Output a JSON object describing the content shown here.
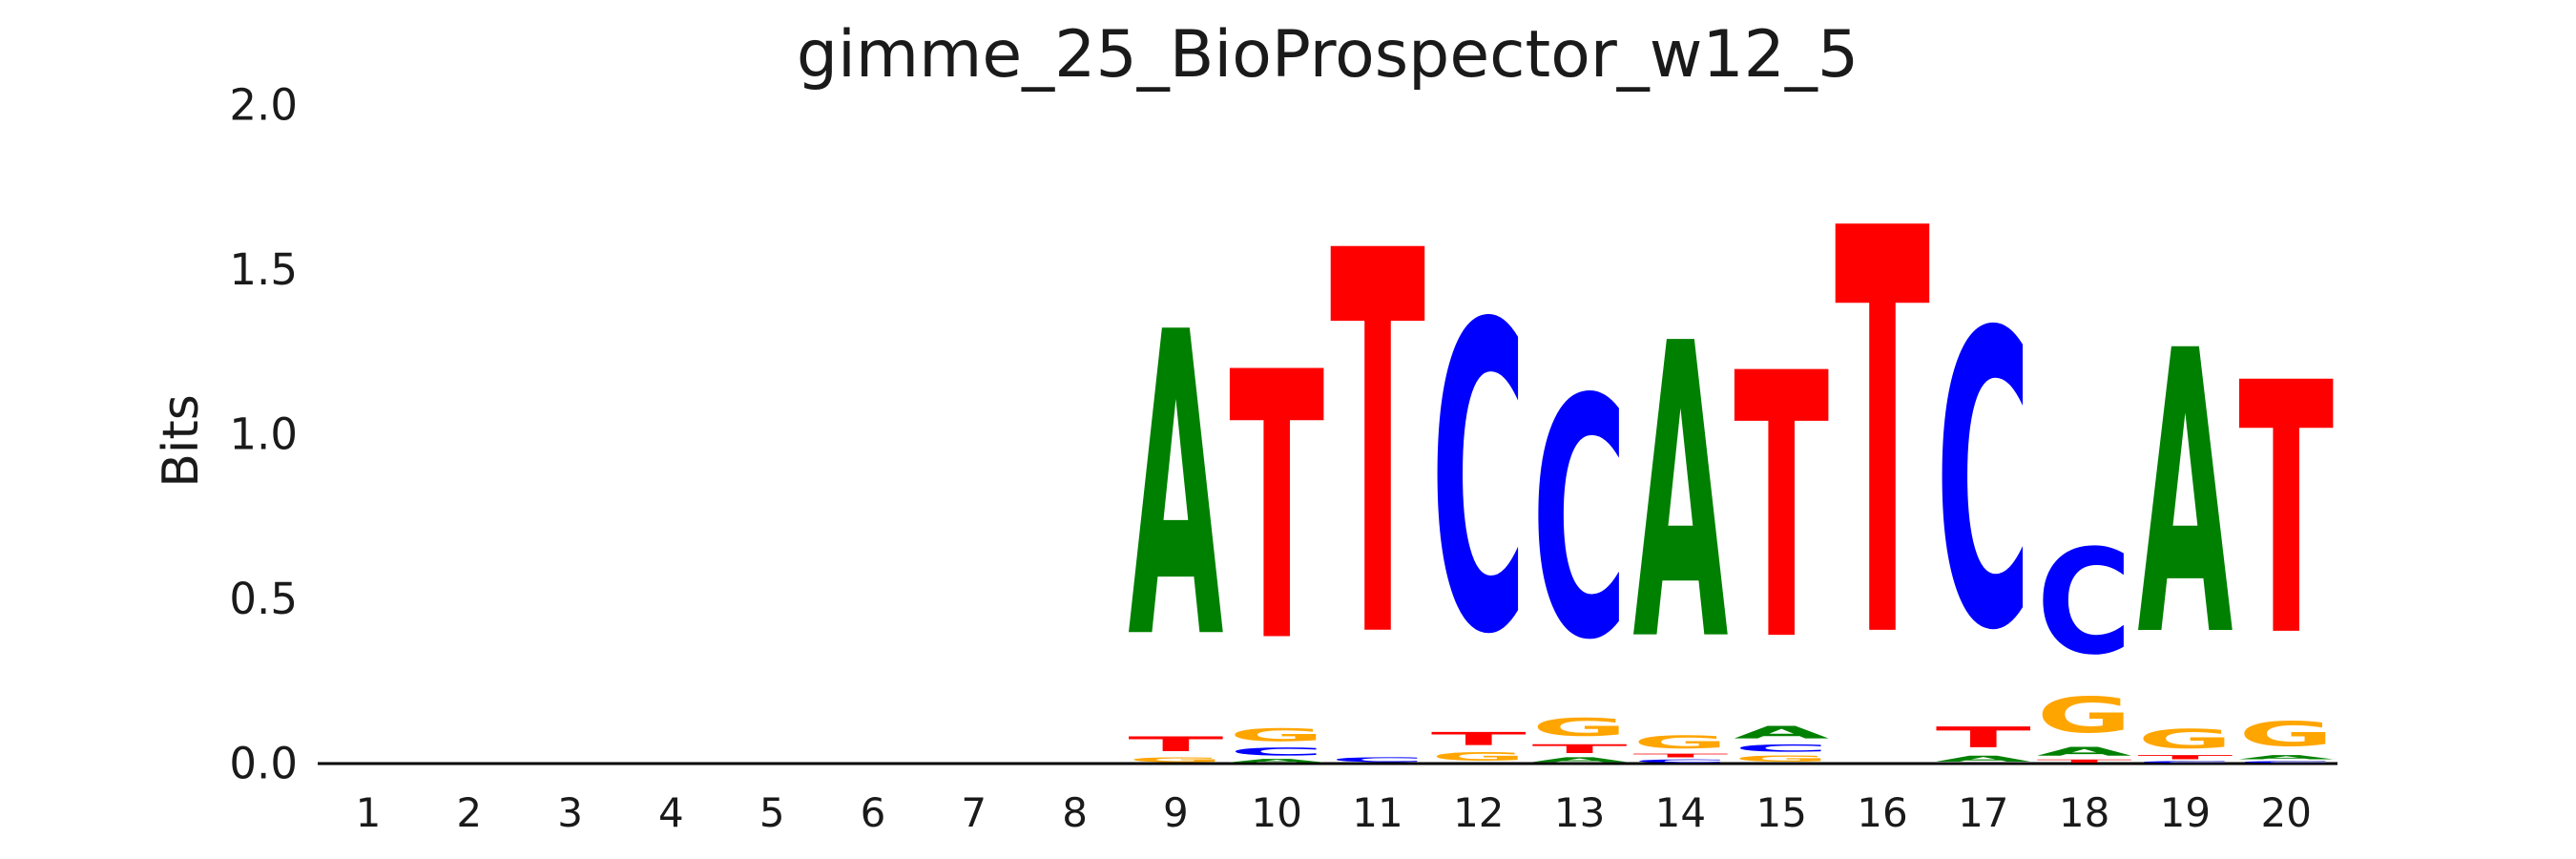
{
  "figure": {
    "title": "gimme_25_BioProspector_w12_5",
    "ylabel": "Bits"
  },
  "chart_data": {
    "type": "sequence_logo",
    "title": "gimme_25_BioProspector_w12_5",
    "xlabel": "",
    "ylabel": "Bits",
    "ylim": [
      0.0,
      2.0
    ],
    "yticks": [
      "0.0",
      "0.5",
      "1.0",
      "1.5",
      "2.0"
    ],
    "grid": false,
    "axis_color": "#000000",
    "text_color": "#1a1a1a",
    "base_colors": {
      "A": "#008000",
      "C": "#0000FF",
      "G": "#FFA500",
      "T": "#FF0000"
    },
    "positions": [
      {
        "pos": 1,
        "stack": []
      },
      {
        "pos": 2,
        "stack": []
      },
      {
        "pos": 3,
        "stack": []
      },
      {
        "pos": 4,
        "stack": []
      },
      {
        "pos": 5,
        "stack": []
      },
      {
        "pos": 6,
        "stack": []
      },
      {
        "pos": 7,
        "stack": []
      },
      {
        "pos": 8,
        "stack": []
      },
      {
        "pos": 9,
        "stack": [
          {
            "base": "G",
            "bits": 0.023
          },
          {
            "base": "T",
            "bits": 0.072
          },
          {
            "base": "A",
            "bits": 1.484
          }
        ]
      },
      {
        "pos": 10,
        "stack": [
          {
            "base": "A",
            "bits": 0.017
          },
          {
            "base": "C",
            "bits": 0.038
          },
          {
            "base": "G",
            "bits": 0.064
          },
          {
            "base": "T",
            "bits": 1.307
          }
        ]
      },
      {
        "pos": 11,
        "stack": [
          {
            "base": "C",
            "bits": 0.023
          },
          {
            "base": "T",
            "bits": 1.87
          }
        ]
      },
      {
        "pos": 12,
        "stack": [
          {
            "base": "G",
            "bits": 0.043
          },
          {
            "base": "T",
            "bits": 0.064
          },
          {
            "base": "C",
            "bits": 1.499
          }
        ]
      },
      {
        "pos": 13,
        "stack": [
          {
            "base": "A",
            "bits": 0.023
          },
          {
            "base": "T",
            "bits": 0.043
          },
          {
            "base": "G",
            "bits": 0.087
          },
          {
            "base": "C",
            "bits": 1.168
          }
        ]
      },
      {
        "pos": 14,
        "stack": [
          {
            "base": "C",
            "bits": 0.015
          },
          {
            "base": "T",
            "bits": 0.018
          },
          {
            "base": "G",
            "bits": 0.064
          },
          {
            "base": "A",
            "bits": 1.44
          }
        ]
      },
      {
        "pos": 15,
        "stack": [
          {
            "base": "G",
            "bits": 0.029
          },
          {
            "base": "C",
            "bits": 0.035
          },
          {
            "base": "A",
            "bits": 0.061
          },
          {
            "base": "T",
            "bits": 1.296
          }
        ]
      },
      {
        "pos": 16,
        "stack": [
          {
            "base": "T",
            "bits": 1.98
          }
        ]
      },
      {
        "pos": 17,
        "stack": [
          {
            "base": "A",
            "bits": 0.029
          },
          {
            "base": "T",
            "bits": 0.101
          },
          {
            "base": "C",
            "bits": 1.441
          }
        ]
      },
      {
        "pos": 18,
        "stack": [
          {
            "base": "T",
            "bits": 0.015
          },
          {
            "base": "A",
            "bits": 0.043
          },
          {
            "base": "G",
            "bits": 0.174
          },
          {
            "base": "C",
            "bits": 0.513
          }
        ]
      },
      {
        "pos": 19,
        "stack": [
          {
            "base": "C",
            "bits": 0.009
          },
          {
            "base": "T",
            "bits": 0.02
          },
          {
            "base": "G",
            "bits": 0.093
          },
          {
            "base": "A",
            "bits": 1.383
          }
        ]
      },
      {
        "pos": 20,
        "stack": [
          {
            "base": "C",
            "bits": 0.009
          },
          {
            "base": "A",
            "bits": 0.02
          },
          {
            "base": "G",
            "bits": 0.122
          },
          {
            "base": "T",
            "bits": 1.229
          }
        ]
      }
    ]
  }
}
